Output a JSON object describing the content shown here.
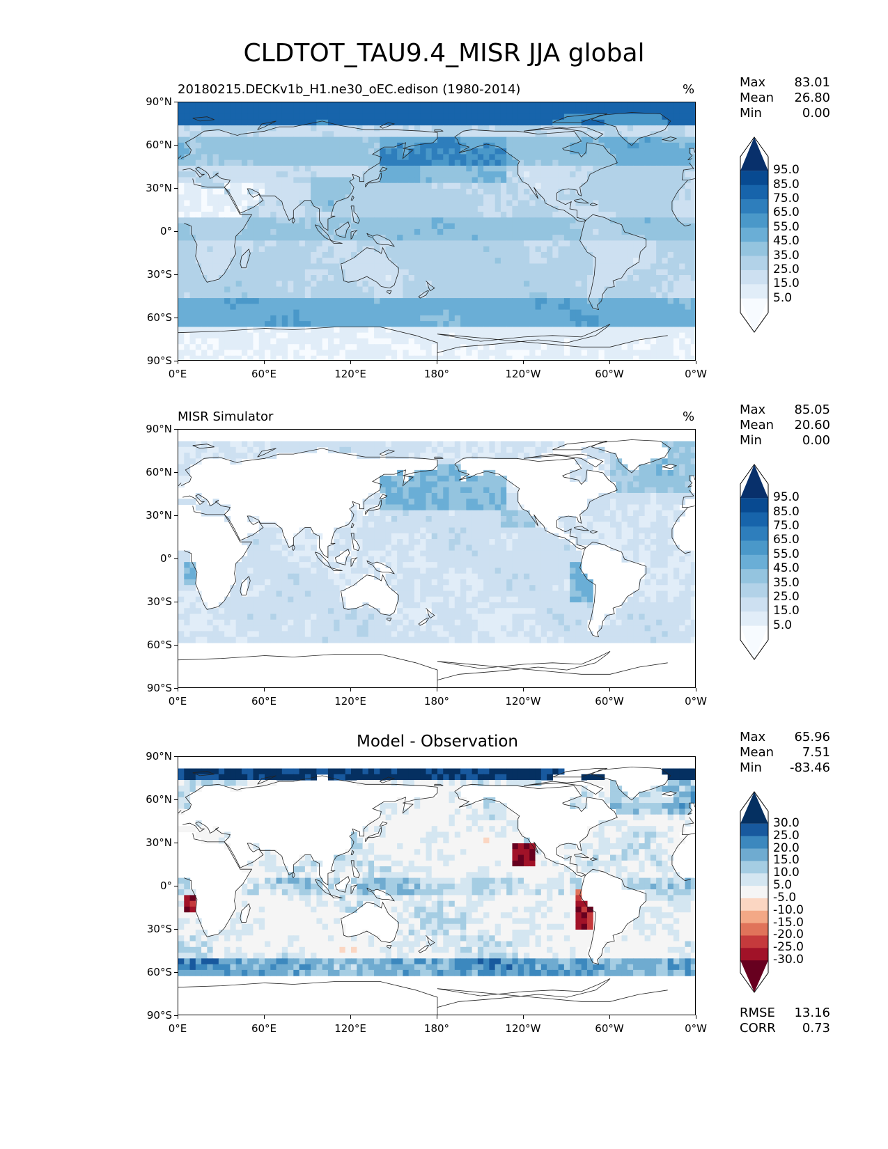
{
  "figure": {
    "title": "CLDTOT_TAU9.4_MISR JJA global"
  },
  "axes": {
    "lat_labels": [
      "90°N",
      "60°N",
      "30°N",
      "0°",
      "30°S",
      "60°S",
      "90°S"
    ],
    "lon_labels": [
      "0°E",
      "60°E",
      "120°E",
      "180°",
      "120°W",
      "60°W",
      "0°W"
    ]
  },
  "colors": {
    "blues": [
      "#f7fbff",
      "#e1edf8",
      "#cde0f1",
      "#b2d2e8",
      "#94c4df",
      "#6aaed6",
      "#4a98c9",
      "#2e7ebc",
      "#1764ab",
      "#084a91",
      "#08306b"
    ],
    "diverging": [
      "#67001f",
      "#a11228",
      "#c53a3c",
      "#e0735a",
      "#f3a886",
      "#fbd6c2",
      "#f5f5f5",
      "#d4e6f1",
      "#a5cde3",
      "#6fabd0",
      "#3c88be",
      "#18599e",
      "#053061"
    ]
  },
  "panels": [
    {
      "title": "20180215.DECKv1b_H1.ne30_oEC.edison (1980-2014)",
      "units": "%",
      "stats": {
        "max_label": "Max",
        "max": "83.01",
        "mean_label": "Mean",
        "mean": "26.80",
        "min_label": "Min",
        "min": "0.00"
      },
      "colorbar": {
        "ticks": [
          "95.0",
          "85.0",
          "75.0",
          "65.0",
          "55.0",
          "45.0",
          "35.0",
          "25.0",
          "15.0",
          "5.0"
        ]
      }
    },
    {
      "title": "MISR Simulator",
      "units": "%",
      "stats": {
        "max_label": "Max",
        "max": "85.05",
        "mean_label": "Mean",
        "mean": "20.60",
        "min_label": "Min",
        "min": "0.00"
      },
      "colorbar": {
        "ticks": [
          "95.0",
          "85.0",
          "75.0",
          "65.0",
          "55.0",
          "45.0",
          "35.0",
          "25.0",
          "15.0",
          "5.0"
        ]
      }
    },
    {
      "title": "Model - Observation",
      "units": "",
      "stats": {
        "max_label": "Max",
        "max": "65.96",
        "mean_label": "Mean",
        "mean": "7.51",
        "min_label": "Min",
        "min": "-83.46"
      },
      "colorbar": {
        "ticks": [
          "30.0",
          "25.0",
          "20.0",
          "15.0",
          "10.0",
          "5.0",
          "-5.0",
          "-10.0",
          "-15.0",
          "-20.0",
          "-25.0",
          "-30.0"
        ]
      },
      "metrics": {
        "rmse_label": "RMSE",
        "rmse": "13.16",
        "corr_label": "CORR",
        "corr": "0.73"
      }
    }
  ]
}
